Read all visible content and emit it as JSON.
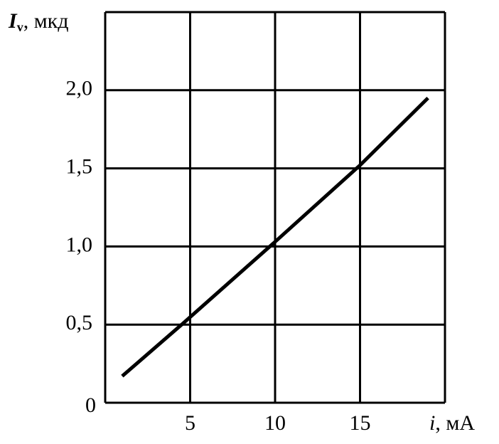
{
  "chart_data": {
    "type": "line",
    "ylabel": {
      "symbol": "I",
      "subscript": "v",
      "unit": ", мкд"
    },
    "xlabel": {
      "symbol": "i",
      "unit": ", мА"
    },
    "x": [
      1,
      4.5,
      10,
      15,
      19
    ],
    "series": [
      {
        "color": "#000000",
        "values": [
          0.17,
          0.5,
          1.03,
          1.52,
          1.95
        ]
      }
    ],
    "xlim": [
      0,
      20
    ],
    "ylim": [
      0,
      2.5
    ],
    "xticks": [
      5,
      10,
      15
    ],
    "yticks": [
      0,
      {
        "value": 0.5,
        "label": "0,5"
      },
      {
        "value": 1.0,
        "label": "1,0"
      },
      {
        "value": 1.5,
        "label": "1,5"
      },
      {
        "value": 2.0,
        "label": "2,0"
      }
    ],
    "grid": true
  }
}
